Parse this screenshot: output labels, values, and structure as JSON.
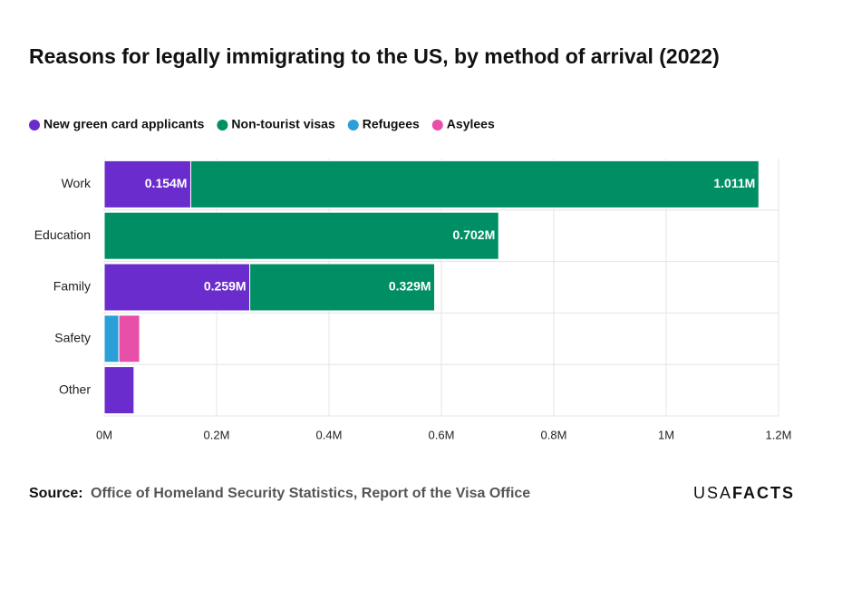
{
  "chart_data": {
    "type": "stacked-bar-horizontal",
    "title": "Reasons for legally immigrating to the US, by method of arrival (2022)",
    "categories": [
      "Work",
      "Education",
      "Family",
      "Safety",
      "Other"
    ],
    "series": [
      {
        "name": "New green card applicants",
        "color": "#6a2ccc",
        "values": [
          0.154,
          null,
          0.259,
          null,
          0.053
        ],
        "value_labels": [
          "0.154M",
          null,
          "0.259M",
          null,
          null
        ]
      },
      {
        "name": "Non-tourist visas",
        "color": "#008f64",
        "values": [
          1.011,
          0.702,
          0.329,
          null,
          null
        ],
        "value_labels": [
          "1.011M",
          "0.702M",
          "0.329M",
          null,
          null
        ]
      },
      {
        "name": "Refugees",
        "color": "#2a9fd8",
        "values": [
          null,
          null,
          null,
          0.026,
          null
        ],
        "value_labels": [
          null,
          null,
          null,
          null,
          null
        ]
      },
      {
        "name": "Asylees",
        "color": "#e84fa9",
        "values": [
          null,
          null,
          null,
          0.037,
          null
        ],
        "value_labels": [
          null,
          null,
          null,
          null,
          null
        ]
      }
    ],
    "xlim": [
      0,
      1.2
    ],
    "xticks": [
      {
        "value": 0,
        "label": "0M"
      },
      {
        "value": 0.2,
        "label": "0.2M"
      },
      {
        "value": 0.4,
        "label": "0.4M"
      },
      {
        "value": 0.6,
        "label": "0.6M"
      },
      {
        "value": 0.8,
        "label": "0.8M"
      },
      {
        "value": 1,
        "label": "1M"
      },
      {
        "value": 1.2,
        "label": "1.2M"
      }
    ],
    "grid": true,
    "source_label": "Source:",
    "source": "Office of Homeland Security Statistics, Report of the Visa Office",
    "logo": {
      "light": "USA",
      "bold": "FACTS"
    }
  }
}
